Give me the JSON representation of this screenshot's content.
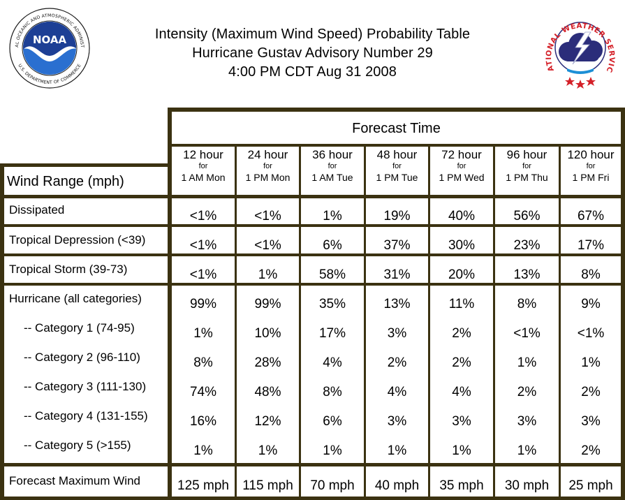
{
  "header": {
    "title_line1": "Intensity (Maximum Wind Speed) Probability Table",
    "title_line2": "Hurricane Gustav Advisory Number 29",
    "title_line3": "4:00 PM CDT Aug 31 2008"
  },
  "logos": {
    "noaa": {
      "icon": "noaa-logo",
      "ring_text": "NATIONAL OCEANIC AND ATMOSPHERIC ADMINISTRATION",
      "ring_text_bottom": "U.S. DEPARTMENT OF COMMERCE",
      "center_text": "NOAA",
      "colors": {
        "sky": "#1d3f95",
        "sea": "#2a6fd0",
        "bird": "#ffffff"
      }
    },
    "nws": {
      "icon": "nws-logo",
      "ring_text": "NATIONAL WEATHER SERVICE",
      "colors": {
        "text": "#d42028",
        "cloud": "#2b2d7a",
        "bolt": "#ffffff"
      }
    }
  },
  "table": {
    "forecast_time_label": "Forecast Time",
    "wind_range_label": "Wind Range (mph)",
    "columns": [
      {
        "hours": "12 hour",
        "for": "for",
        "when": "1 AM Mon"
      },
      {
        "hours": "24 hour",
        "for": "for",
        "when": "1 PM Mon"
      },
      {
        "hours": "36 hour",
        "for": "for",
        "when": "1 AM Tue"
      },
      {
        "hours": "48 hour",
        "for": "for",
        "when": "1 PM Tue"
      },
      {
        "hours": "72 hour",
        "for": "for",
        "when": "1 PM Wed"
      },
      {
        "hours": "96 hour",
        "for": "for",
        "when": "1 PM Thu"
      },
      {
        "hours": "120 hour",
        "for": "for",
        "when": "1 PM Fri"
      }
    ],
    "rows": [
      {
        "label": "Dissipated",
        "values": [
          "<1%",
          "<1%",
          "1%",
          "19%",
          "40%",
          "56%",
          "67%"
        ]
      },
      {
        "label": "Tropical Depression (<39)",
        "values": [
          "<1%",
          "<1%",
          "6%",
          "37%",
          "30%",
          "23%",
          "17%"
        ]
      },
      {
        "label": "Tropical Storm (39-73)",
        "values": [
          "<1%",
          "1%",
          "58%",
          "31%",
          "20%",
          "13%",
          "8%"
        ]
      },
      {
        "label": "Hurricane (all categories)",
        "values": [
          "99%",
          "99%",
          "35%",
          "13%",
          "11%",
          "8%",
          "9%"
        ]
      },
      {
        "label": "-- Category 1 (74-95)",
        "values": [
          "1%",
          "10%",
          "17%",
          "3%",
          "2%",
          "<1%",
          "<1%"
        ]
      },
      {
        "label": "-- Category 2 (96-110)",
        "values": [
          "8%",
          "28%",
          "4%",
          "2%",
          "2%",
          "1%",
          "1%"
        ]
      },
      {
        "label": "-- Category 3 (111-130)",
        "values": [
          "74%",
          "48%",
          "8%",
          "4%",
          "4%",
          "2%",
          "2%"
        ]
      },
      {
        "label": "-- Category 4 (131-155)",
        "values": [
          "16%",
          "12%",
          "6%",
          "3%",
          "3%",
          "3%",
          "3%"
        ]
      },
      {
        "label": "-- Category 5 (>155)",
        "values": [
          "1%",
          "1%",
          "1%",
          "1%",
          "1%",
          "1%",
          "2%"
        ]
      }
    ],
    "max_wind": {
      "label": "Forecast Maximum Wind",
      "values": [
        "125 mph",
        "115 mph",
        "70 mph",
        "40 mph",
        "35 mph",
        "30 mph",
        "25 mph"
      ]
    }
  },
  "colors": {
    "border": "#3b3211",
    "background": "#ffffff",
    "text": "#000000"
  }
}
